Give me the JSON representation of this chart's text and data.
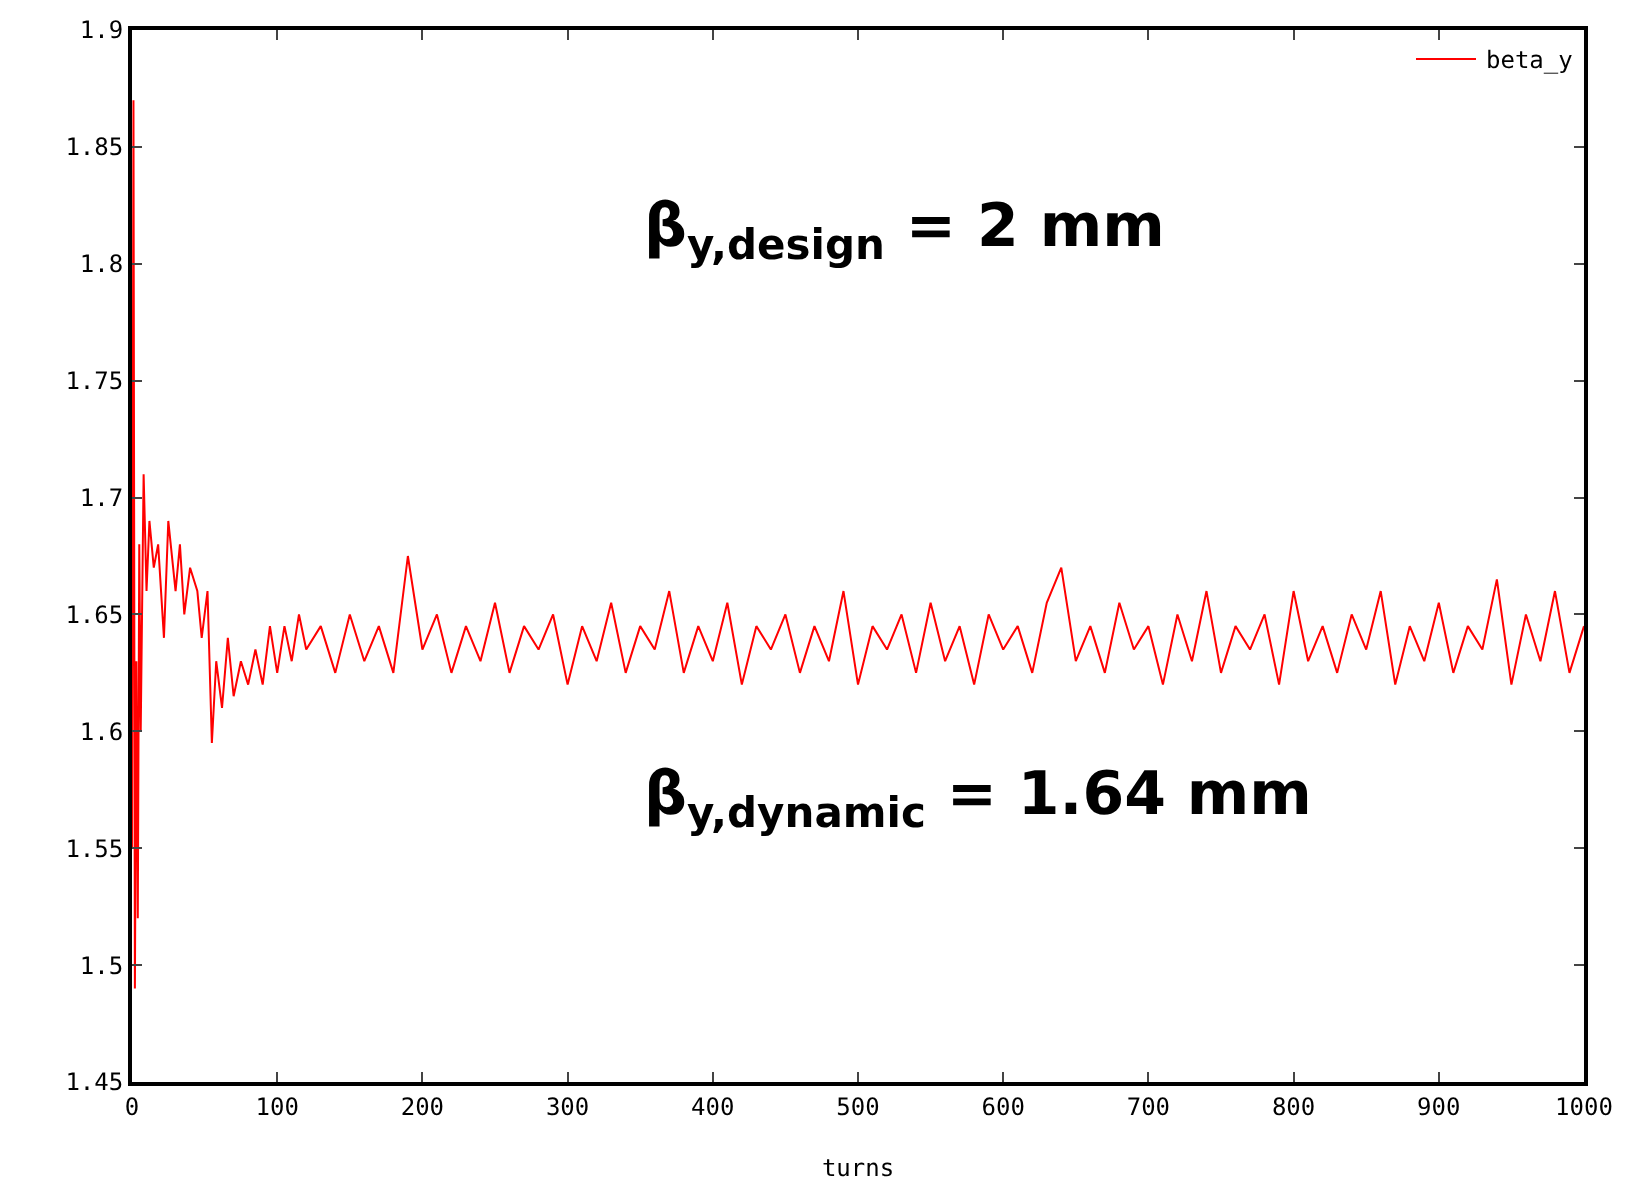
{
  "chart_data": {
    "type": "line",
    "xlabel": "turns",
    "xlim": [
      0,
      1000
    ],
    "xticks": [
      0,
      100,
      200,
      300,
      400,
      500,
      600,
      700,
      800,
      900,
      1000
    ],
    "ylim": [
      1.45,
      1.9
    ],
    "yticks": [
      1.45,
      1.5,
      1.55,
      1.6,
      1.65,
      1.7,
      1.75,
      1.8,
      1.85,
      1.9
    ],
    "grid": false,
    "legend": "top right",
    "marker": "none",
    "line_style": "solid",
    "annotations": [
      "β$_{y,design}$ = 2 mm",
      "β$_{y,dynamic}$ = 1.64 mm"
    ],
    "series": [
      {
        "name": "beta_y",
        "color": "#ff0000",
        "x": [
          0,
          1,
          2,
          3,
          4,
          5,
          6,
          8,
          10,
          12,
          15,
          18,
          22,
          25,
          30,
          33,
          36,
          40,
          45,
          48,
          52,
          55,
          58,
          62,
          66,
          70,
          75,
          80,
          85,
          90,
          95,
          100,
          105,
          110,
          115,
          120,
          130,
          140,
          150,
          160,
          170,
          180,
          190,
          200,
          210,
          220,
          230,
          240,
          250,
          260,
          270,
          280,
          290,
          300,
          310,
          320,
          330,
          340,
          350,
          360,
          370,
          380,
          390,
          400,
          410,
          420,
          430,
          440,
          450,
          460,
          470,
          480,
          490,
          500,
          510,
          520,
          530,
          540,
          550,
          560,
          570,
          580,
          590,
          600,
          610,
          620,
          630,
          640,
          650,
          660,
          670,
          680,
          690,
          700,
          710,
          720,
          730,
          740,
          750,
          760,
          770,
          780,
          790,
          800,
          810,
          820,
          830,
          840,
          850,
          860,
          870,
          880,
          890,
          900,
          910,
          920,
          930,
          940,
          950,
          960,
          970,
          980,
          990,
          1000
        ],
        "values": [
          1.55,
          1.87,
          1.49,
          1.63,
          1.52,
          1.68,
          1.6,
          1.71,
          1.66,
          1.69,
          1.67,
          1.68,
          1.64,
          1.69,
          1.66,
          1.68,
          1.65,
          1.67,
          1.66,
          1.64,
          1.66,
          1.595,
          1.63,
          1.61,
          1.64,
          1.615,
          1.63,
          1.62,
          1.635,
          1.62,
          1.645,
          1.625,
          1.645,
          1.63,
          1.65,
          1.635,
          1.645,
          1.625,
          1.65,
          1.63,
          1.645,
          1.625,
          1.675,
          1.635,
          1.65,
          1.625,
          1.645,
          1.63,
          1.655,
          1.625,
          1.645,
          1.635,
          1.65,
          1.62,
          1.645,
          1.63,
          1.655,
          1.625,
          1.645,
          1.635,
          1.66,
          1.625,
          1.645,
          1.63,
          1.655,
          1.62,
          1.645,
          1.635,
          1.65,
          1.625,
          1.645,
          1.63,
          1.66,
          1.62,
          1.645,
          1.635,
          1.65,
          1.625,
          1.655,
          1.63,
          1.645,
          1.62,
          1.65,
          1.635,
          1.645,
          1.625,
          1.655,
          1.67,
          1.63,
          1.645,
          1.625,
          1.655,
          1.635,
          1.645,
          1.62,
          1.65,
          1.63,
          1.66,
          1.625,
          1.645,
          1.635,
          1.65,
          1.62,
          1.66,
          1.63,
          1.645,
          1.625,
          1.65,
          1.635,
          1.66,
          1.62,
          1.645,
          1.63,
          1.655,
          1.625,
          1.645,
          1.635,
          1.665,
          1.62,
          1.65,
          1.63,
          1.66,
          1.625,
          1.645
        ]
      }
    ]
  }
}
